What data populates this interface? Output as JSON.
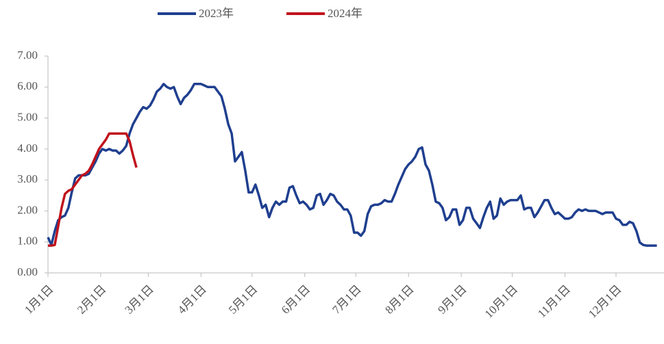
{
  "chart_data": {
    "type": "line",
    "xlim": [
      1,
      362
    ],
    "xticks": [
      {
        "value": 1,
        "label": "1月1日"
      },
      {
        "value": 32,
        "label": "2月1日"
      },
      {
        "value": 60,
        "label": "3月1日"
      },
      {
        "value": 91,
        "label": "4月1日"
      },
      {
        "value": 121,
        "label": "5月1日"
      },
      {
        "value": 152,
        "label": "6月1日"
      },
      {
        "value": 182,
        "label": "7月1日"
      },
      {
        "value": 213,
        "label": "8月1日"
      },
      {
        "value": 244,
        "label": "9月1日"
      },
      {
        "value": 274,
        "label": "10月1日"
      },
      {
        "value": 305,
        "label": "11月1日"
      },
      {
        "value": 335,
        "label": "12月1日"
      }
    ],
    "ylim": [
      0,
      7
    ],
    "yticks": [
      {
        "value": 0,
        "label": "0.00"
      },
      {
        "value": 1,
        "label": "1.00"
      },
      {
        "value": 2,
        "label": "2.00"
      },
      {
        "value": 3,
        "label": "3.00"
      },
      {
        "value": 4,
        "label": "4.00"
      },
      {
        "value": 5,
        "label": "5.00"
      },
      {
        "value": 6,
        "label": "6.00"
      },
      {
        "value": 7,
        "label": "7.00"
      }
    ],
    "series": [
      {
        "name": "2023年",
        "color": "#1f3f8f",
        "x": [
          1,
          3,
          5,
          7,
          9,
          11,
          13,
          15,
          17,
          19,
          21,
          23,
          25,
          27,
          29,
          31,
          33,
          35,
          37,
          39,
          41,
          43,
          45,
          47,
          49,
          51,
          53,
          55,
          57,
          59,
          61,
          63,
          65,
          67,
          69,
          71,
          73,
          75,
          77,
          79,
          81,
          83,
          85,
          87,
          89,
          91,
          93,
          95,
          97,
          99,
          101,
          103,
          105,
          107,
          109,
          111,
          113,
          115,
          117,
          119,
          121,
          123,
          125,
          127,
          129,
          131,
          133,
          135,
          137,
          139,
          141,
          143,
          145,
          147,
          149,
          151,
          153,
          155,
          157,
          159,
          161,
          163,
          165,
          167,
          169,
          171,
          173,
          175,
          177,
          179,
          181,
          183,
          185,
          187,
          189,
          191,
          193,
          195,
          197,
          199,
          201,
          203,
          205,
          207,
          209,
          211,
          213,
          215,
          217,
          219,
          221,
          223,
          225,
          227,
          229,
          231,
          233,
          235,
          237,
          239,
          241,
          243,
          245,
          247,
          249,
          251,
          253,
          255,
          257,
          259,
          261,
          263,
          265,
          267,
          269,
          271,
          273,
          275,
          277,
          279,
          281,
          283,
          285,
          287,
          289,
          291,
          293,
          295,
          297,
          299,
          301,
          303,
          305,
          307,
          309,
          311,
          313,
          315,
          317,
          319,
          321,
          323,
          325,
          327,
          329,
          331,
          333,
          335,
          337,
          339,
          341,
          343,
          345,
          347,
          349,
          351,
          353,
          355,
          357,
          359
        ],
        "values": [
          1.15,
          0.9,
          1.35,
          1.7,
          1.8,
          1.85,
          2.1,
          2.6,
          3.05,
          3.15,
          3.15,
          3.15,
          3.2,
          3.4,
          3.6,
          3.85,
          4.0,
          3.95,
          4.0,
          3.95,
          3.95,
          3.85,
          3.95,
          4.1,
          4.5,
          4.8,
          5.0,
          5.2,
          5.35,
          5.3,
          5.4,
          5.6,
          5.85,
          5.95,
          6.1,
          6.0,
          5.95,
          6.0,
          5.7,
          5.45,
          5.65,
          5.75,
          5.9,
          6.1,
          6.1,
          6.1,
          6.05,
          6.0,
          6.0,
          6.0,
          5.85,
          5.7,
          5.3,
          4.8,
          4.5,
          3.6,
          3.75,
          3.9,
          3.3,
          2.6,
          2.6,
          2.85,
          2.5,
          2.1,
          2.2,
          1.8,
          2.1,
          2.3,
          2.2,
          2.3,
          2.3,
          2.75,
          2.8,
          2.5,
          2.25,
          2.3,
          2.2,
          2.05,
          2.1,
          2.5,
          2.55,
          2.2,
          2.35,
          2.55,
          2.5,
          2.3,
          2.2,
          2.05,
          2.05,
          1.85,
          1.3,
          1.3,
          1.2,
          1.35,
          1.9,
          2.15,
          2.2,
          2.2,
          2.25,
          2.35,
          2.3,
          2.3,
          2.55,
          2.85,
          3.1,
          3.35,
          3.5,
          3.6,
          3.75,
          4.0,
          4.05,
          3.5,
          3.3,
          2.85,
          2.3,
          2.25,
          2.1,
          1.7,
          1.8,
          2.05,
          2.05,
          1.55,
          1.7,
          2.1,
          2.1,
          1.75,
          1.6,
          1.45,
          1.8,
          2.1,
          2.3,
          1.75,
          1.85,
          2.4,
          2.2,
          2.3,
          2.35,
          2.35,
          2.35,
          2.5,
          2.05,
          2.1,
          2.1,
          1.8,
          1.95,
          2.15,
          2.35,
          2.35,
          2.1,
          1.9,
          1.95,
          1.85,
          1.75,
          1.75,
          1.8,
          1.95,
          2.05,
          2.0,
          2.05,
          2.0,
          2.0,
          2.0,
          1.95,
          1.9,
          1.95,
          1.95,
          1.95,
          1.75,
          1.7,
          1.55,
          1.55,
          1.65,
          1.6,
          1.35,
          0.98,
          0.9,
          0.88,
          0.88,
          0.88,
          0.88
        ]
      },
      {
        "name": "2024年",
        "color": "#c0121c",
        "x": [
          1,
          3,
          5,
          7,
          9,
          11,
          13,
          15,
          17,
          19,
          21,
          23,
          25,
          27,
          29,
          31,
          33,
          35,
          37,
          39,
          41,
          43,
          45,
          47,
          49,
          51,
          53
        ],
        "values": [
          0.88,
          0.88,
          0.9,
          1.5,
          2.1,
          2.55,
          2.65,
          2.7,
          2.85,
          3.0,
          3.15,
          3.2,
          3.3,
          3.5,
          3.75,
          4.0,
          4.15,
          4.3,
          4.5,
          4.5,
          4.5,
          4.5,
          4.5,
          4.5,
          4.25,
          3.8,
          3.4
        ]
      }
    ]
  }
}
